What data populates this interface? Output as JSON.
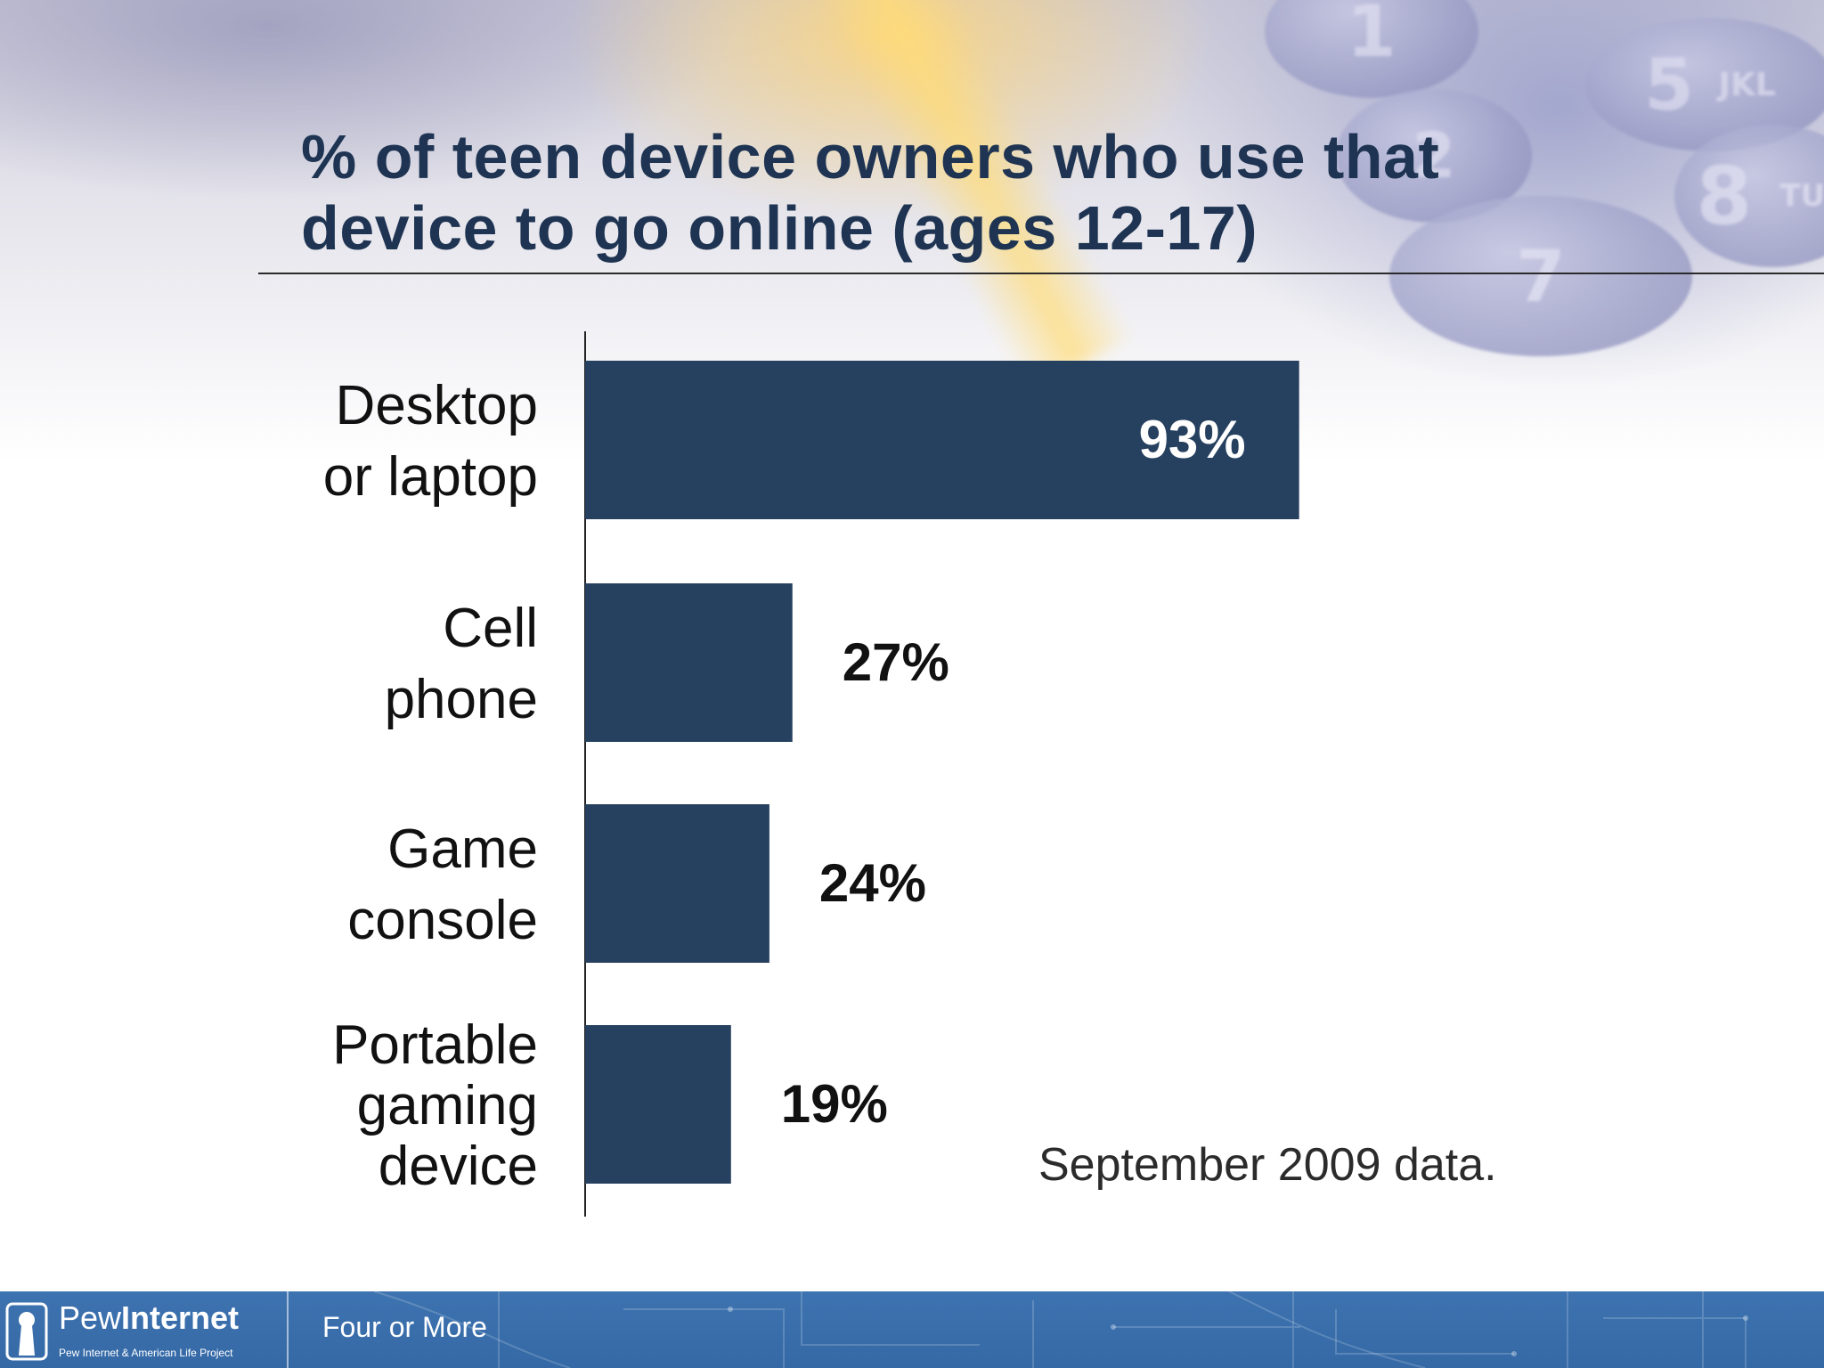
{
  "slide": {
    "title_line1": "% of teen device owners who use that",
    "title_line2": "device to go online (ages 12-17)",
    "note": "September 2009 data."
  },
  "decor": {
    "keypad_digits": [
      "1",
      "5",
      "8",
      "7",
      "2"
    ],
    "keypad_letters": [
      "JKL",
      "TUV"
    ]
  },
  "chart_data": {
    "type": "bar",
    "orientation": "horizontal",
    "title": "% of teen device owners who use that device to go online (ages 12-17)",
    "categories": [
      [
        "Desktop",
        "or laptop"
      ],
      [
        "Cell",
        "phone"
      ],
      [
        "Game",
        "console"
      ],
      [
        "Portable",
        "gaming",
        "device"
      ]
    ],
    "values": [
      93,
      27,
      24,
      19
    ],
    "value_labels": [
      "93%",
      "27%",
      "24%",
      "19%"
    ],
    "xlim": [
      0,
      100
    ],
    "grid": false,
    "legend": "none",
    "colors": {
      "bar": "#26405f",
      "label_inside": "#ffffff",
      "label_outside": "#111111",
      "axis": "#222222"
    }
  },
  "footer": {
    "brand_part1": "Pew",
    "brand_part2": "Internet",
    "brand_sub": "Pew Internet & American Life Project",
    "text": "Four or More",
    "logo_icon": "pew-keyhole-logo-icon",
    "colors": {
      "background": "#3a6fad",
      "text": "#ffffff"
    }
  }
}
